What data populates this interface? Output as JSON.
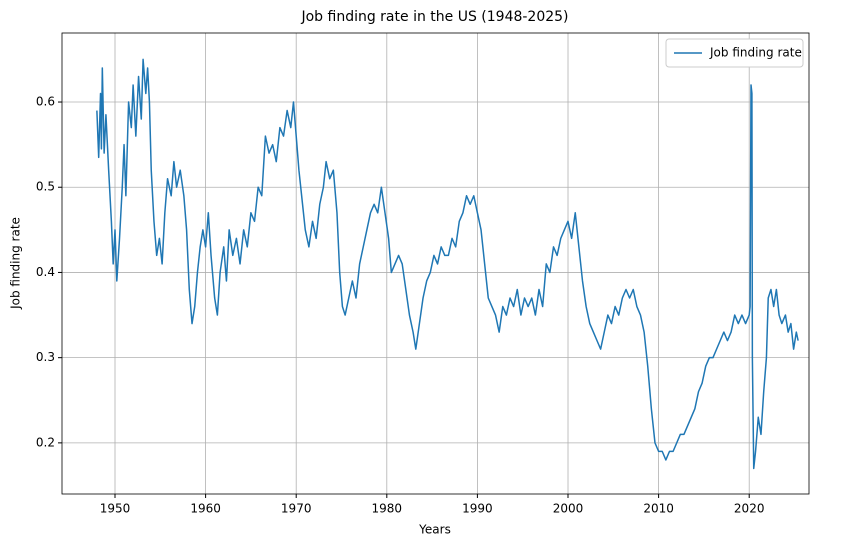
{
  "chart_data": {
    "type": "line",
    "title": "Job finding rate in the US (1948-2025)",
    "x_label": "Years",
    "y_label": "Job finding rate",
    "legend": "upper right",
    "grid": true,
    "xlim": [
      1944.15,
      2026.6
    ],
    "ylim": [
      0.14,
      0.681
    ],
    "xticks": [
      1950,
      1960,
      1970,
      1980,
      1990,
      2000,
      2010,
      2020
    ],
    "yticks": [
      0.2,
      0.3,
      0.4,
      0.5,
      0.6
    ],
    "x": [
      1948.0,
      1948.2,
      1948.4,
      1948.5,
      1948.6,
      1948.8,
      1949.0,
      1949.3,
      1949.6,
      1949.8,
      1950.0,
      1950.2,
      1950.5,
      1950.8,
      1951.0,
      1951.2,
      1951.5,
      1951.8,
      1952.0,
      1952.3,
      1952.6,
      1952.9,
      1953.1,
      1953.4,
      1953.6,
      1953.8,
      1954.0,
      1954.3,
      1954.6,
      1954.9,
      1955.2,
      1955.5,
      1955.8,
      1956.2,
      1956.5,
      1956.8,
      1957.2,
      1957.6,
      1957.9,
      1958.2,
      1958.5,
      1958.8,
      1959.1,
      1959.4,
      1959.7,
      1960.0,
      1960.3,
      1960.6,
      1961.0,
      1961.3,
      1961.6,
      1962.0,
      1962.3,
      1962.6,
      1963.0,
      1963.4,
      1963.8,
      1964.2,
      1964.6,
      1965.0,
      1965.4,
      1965.8,
      1966.2,
      1966.6,
      1967.0,
      1967.4,
      1967.8,
      1968.2,
      1968.6,
      1969.0,
      1969.4,
      1969.7,
      1970.0,
      1970.3,
      1970.6,
      1971.0,
      1971.4,
      1971.8,
      1972.2,
      1972.6,
      1973.0,
      1973.3,
      1973.7,
      1974.1,
      1974.5,
      1974.8,
      1975.1,
      1975.4,
      1975.8,
      1976.2,
      1976.6,
      1977.0,
      1977.4,
      1977.8,
      1978.2,
      1978.6,
      1979.0,
      1979.4,
      1979.8,
      1980.2,
      1980.5,
      1980.9,
      1981.3,
      1981.7,
      1982.1,
      1982.5,
      1982.9,
      1983.2,
      1983.6,
      1984.0,
      1984.4,
      1984.8,
      1985.2,
      1985.6,
      1986.0,
      1986.4,
      1986.8,
      1987.2,
      1987.6,
      1988.0,
      1988.4,
      1988.8,
      1989.2,
      1989.6,
      1990.0,
      1990.4,
      1990.8,
      1991.2,
      1991.6,
      1992.0,
      1992.4,
      1992.8,
      1993.2,
      1993.6,
      1994.0,
      1994.4,
      1994.8,
      1995.2,
      1995.6,
      1996.0,
      1996.4,
      1996.8,
      1997.2,
      1997.6,
      1998.0,
      1998.4,
      1998.8,
      1999.2,
      1999.6,
      2000.0,
      2000.4,
      2000.8,
      2001.2,
      2001.6,
      2002.0,
      2002.4,
      2002.8,
      2003.2,
      2003.6,
      2004.0,
      2004.4,
      2004.8,
      2005.2,
      2005.6,
      2006.0,
      2006.4,
      2006.8,
      2007.2,
      2007.6,
      2008.0,
      2008.4,
      2008.8,
      2009.2,
      2009.6,
      2010.0,
      2010.4,
      2010.8,
      2011.2,
      2011.6,
      2012.0,
      2012.4,
      2012.8,
      2013.2,
      2013.6,
      2014.0,
      2014.4,
      2014.8,
      2015.2,
      2015.6,
      2016.0,
      2016.4,
      2016.8,
      2017.2,
      2017.6,
      2018.0,
      2018.4,
      2018.8,
      2019.2,
      2019.6,
      2020.0,
      2020.1,
      2020.2,
      2020.3,
      2020.35,
      2020.5,
      2020.7,
      2021.0,
      2021.3,
      2021.6,
      2021.9,
      2022.1,
      2022.4,
      2022.7,
      2023.0,
      2023.3,
      2023.6,
      2024.0,
      2024.3,
      2024.6,
      2024.9,
      2025.2,
      2025.4
    ],
    "series": [
      {
        "name": "Job finding rate",
        "color": "#1f77b4",
        "values": [
          0.59,
          0.535,
          0.61,
          0.545,
          0.64,
          0.54,
          0.585,
          0.52,
          0.46,
          0.41,
          0.45,
          0.39,
          0.44,
          0.5,
          0.55,
          0.49,
          0.6,
          0.57,
          0.62,
          0.56,
          0.63,
          0.58,
          0.65,
          0.61,
          0.64,
          0.6,
          0.52,
          0.46,
          0.42,
          0.44,
          0.41,
          0.47,
          0.51,
          0.49,
          0.53,
          0.5,
          0.52,
          0.49,
          0.45,
          0.38,
          0.34,
          0.36,
          0.4,
          0.43,
          0.45,
          0.43,
          0.47,
          0.42,
          0.37,
          0.35,
          0.4,
          0.43,
          0.39,
          0.45,
          0.42,
          0.44,
          0.41,
          0.45,
          0.43,
          0.47,
          0.46,
          0.5,
          0.49,
          0.56,
          0.54,
          0.55,
          0.53,
          0.57,
          0.56,
          0.59,
          0.57,
          0.6,
          0.56,
          0.52,
          0.49,
          0.45,
          0.43,
          0.46,
          0.44,
          0.48,
          0.5,
          0.53,
          0.51,
          0.52,
          0.47,
          0.4,
          0.36,
          0.35,
          0.37,
          0.39,
          0.37,
          0.41,
          0.43,
          0.45,
          0.47,
          0.48,
          0.47,
          0.5,
          0.47,
          0.44,
          0.4,
          0.41,
          0.42,
          0.41,
          0.38,
          0.35,
          0.33,
          0.31,
          0.34,
          0.37,
          0.39,
          0.4,
          0.42,
          0.41,
          0.43,
          0.42,
          0.42,
          0.44,
          0.43,
          0.46,
          0.47,
          0.49,
          0.48,
          0.49,
          0.47,
          0.45,
          0.41,
          0.37,
          0.36,
          0.35,
          0.33,
          0.36,
          0.35,
          0.37,
          0.36,
          0.38,
          0.35,
          0.37,
          0.36,
          0.37,
          0.35,
          0.38,
          0.36,
          0.41,
          0.4,
          0.43,
          0.42,
          0.44,
          0.45,
          0.46,
          0.44,
          0.47,
          0.43,
          0.39,
          0.36,
          0.34,
          0.33,
          0.32,
          0.31,
          0.33,
          0.35,
          0.34,
          0.36,
          0.35,
          0.37,
          0.38,
          0.37,
          0.38,
          0.36,
          0.35,
          0.33,
          0.29,
          0.24,
          0.2,
          0.19,
          0.19,
          0.18,
          0.19,
          0.19,
          0.2,
          0.21,
          0.21,
          0.22,
          0.23,
          0.24,
          0.26,
          0.27,
          0.29,
          0.3,
          0.3,
          0.31,
          0.32,
          0.33,
          0.32,
          0.33,
          0.35,
          0.34,
          0.35,
          0.34,
          0.35,
          0.36,
          0.62,
          0.61,
          0.3,
          0.17,
          0.19,
          0.23,
          0.21,
          0.26,
          0.3,
          0.37,
          0.38,
          0.36,
          0.38,
          0.35,
          0.34,
          0.35,
          0.33,
          0.34,
          0.31,
          0.33,
          0.32
        ]
      }
    ]
  }
}
